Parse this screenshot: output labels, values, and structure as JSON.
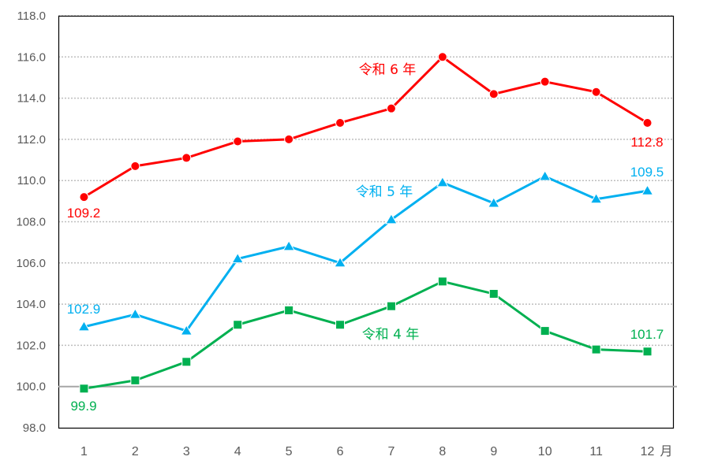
{
  "chart_data": {
    "type": "line",
    "title": "",
    "xlabel": "",
    "ylabel": "",
    "x_unit_label": "月",
    "categories": [
      "1",
      "2",
      "3",
      "4",
      "5",
      "6",
      "7",
      "8",
      "9",
      "10",
      "11",
      "12"
    ],
    "y_ticks": [
      "98.0",
      "100.0",
      "102.0",
      "104.0",
      "106.0",
      "108.0",
      "110.0",
      "112.0",
      "114.0",
      "116.0",
      "118.0"
    ],
    "ylim": [
      98,
      118
    ],
    "grid": "horizontal dotted",
    "reference_line": 100.0,
    "legend": "inline labels",
    "series": [
      {
        "name": "令和 6 年",
        "color": "#FF0000",
        "marker": "circle",
        "values": [
          109.2,
          110.7,
          111.1,
          111.9,
          112.0,
          112.8,
          113.5,
          116.0,
          114.2,
          114.8,
          114.3,
          112.8
        ],
        "first_label": "109.2",
        "last_label": "112.8"
      },
      {
        "name": "令和 5 年",
        "color": "#00B0F0",
        "marker": "triangle",
        "values": [
          102.9,
          103.5,
          102.7,
          106.2,
          106.8,
          106.0,
          108.1,
          109.9,
          108.9,
          110.2,
          109.1,
          109.5
        ],
        "first_label": "102.9",
        "last_label": "109.5"
      },
      {
        "name": "令和 4 年",
        "color": "#00B050",
        "marker": "square",
        "values": [
          99.9,
          100.3,
          101.2,
          103.0,
          103.7,
          103.0,
          103.9,
          105.1,
          104.5,
          102.7,
          101.8,
          101.7
        ],
        "first_label": "99.9",
        "last_label": "101.7"
      }
    ]
  }
}
